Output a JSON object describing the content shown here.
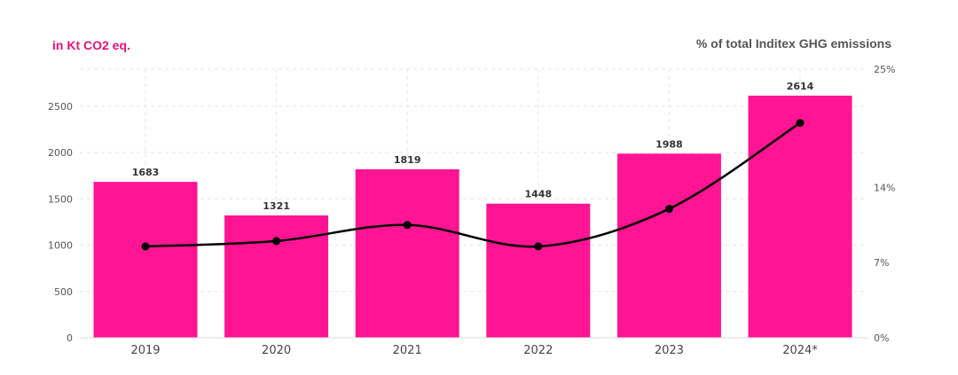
{
  "chart_data": {
    "type": "bar",
    "left_axis_label": "in Kt CO2 eq.",
    "right_axis_label": "% of total Inditex GHG emissions",
    "categories": [
      "2019",
      "2020",
      "2021",
      "2022",
      "2023",
      "2024*"
    ],
    "series": [
      {
        "type": "bar",
        "axis": "left",
        "values": [
          1683,
          1321,
          1819,
          1448,
          1988,
          2614
        ],
        "color": "#ff1493"
      },
      {
        "type": "line",
        "axis": "right",
        "values": [
          8.5,
          9.0,
          10.5,
          8.5,
          12.0,
          20.0
        ],
        "color": "#000000"
      }
    ],
    "data_labels": [
      "1683",
      "1321",
      "1819",
      "1448",
      "1988",
      "2614"
    ],
    "y_left": {
      "ylim": [
        0,
        2900
      ],
      "ticks": [
        0,
        500,
        1000,
        1500,
        2000,
        2500
      ],
      "tick_labels": [
        "0",
        "500",
        "1000",
        "1500",
        "2000",
        "2500"
      ]
    },
    "y_right": {
      "ylim": [
        0,
        25
      ],
      "ticks": [
        0,
        7,
        14,
        25
      ],
      "tick_labels": [
        "0%",
        "7%",
        "14%",
        "25%"
      ]
    },
    "grid": true,
    "left_label_color": "#e8107a"
  }
}
